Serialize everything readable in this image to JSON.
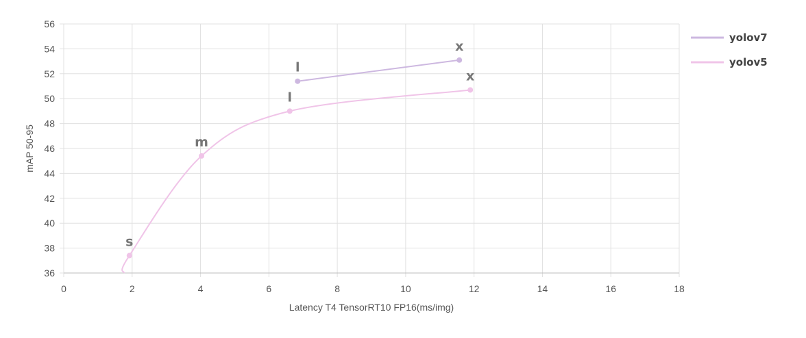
{
  "chart_data": {
    "type": "line",
    "title": "",
    "xlabel": "Latency T4 TensorRT10 FP16(ms/img)",
    "ylabel": "mAP 50-95",
    "xlim": [
      0,
      18
    ],
    "ylim": [
      36,
      56
    ],
    "xticks": [
      0,
      2,
      4,
      6,
      8,
      10,
      12,
      14,
      16,
      18
    ],
    "yticks": [
      36,
      38,
      40,
      42,
      44,
      46,
      48,
      50,
      52,
      54,
      56
    ],
    "grid": true,
    "legend": "right",
    "series": [
      {
        "name": "yolov7",
        "color": "#cdb8e0",
        "points": [
          {
            "x": 6.84,
            "y": 51.4,
            "label": "l"
          },
          {
            "x": 11.57,
            "y": 53.1,
            "label": "x"
          }
        ]
      },
      {
        "name": "yolov5",
        "color": "#f0c4e8",
        "curve_start": {
          "x": 1.76,
          "y": 36.0
        },
        "points": [
          {
            "x": 1.92,
            "y": 37.4,
            "label": "s"
          },
          {
            "x": 4.03,
            "y": 45.4,
            "label": "m"
          },
          {
            "x": 6.61,
            "y": 49.0,
            "label": "l"
          },
          {
            "x": 11.89,
            "y": 50.7,
            "label": "x"
          }
        ]
      }
    ]
  }
}
